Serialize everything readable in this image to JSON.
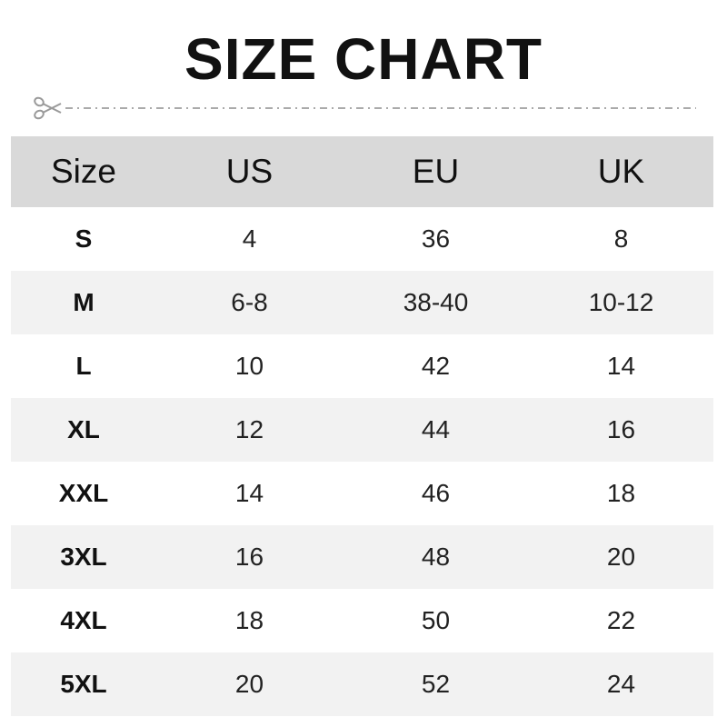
{
  "title": "SIZE CHART",
  "icons": {
    "cut": "scissors-icon"
  },
  "colors": {
    "header_bg": "#d9d9d9",
    "alt_row_bg": "#f2f2f2",
    "cut_line": "#aaaaaa"
  },
  "table": {
    "headers": [
      "Size",
      "US",
      "EU",
      "UK"
    ],
    "rows": [
      [
        "S",
        "4",
        "36",
        "8"
      ],
      [
        "M",
        "6-8",
        "38-40",
        "10-12"
      ],
      [
        "L",
        "10",
        "42",
        "14"
      ],
      [
        "XL",
        "12",
        "44",
        "16"
      ],
      [
        "XXL",
        "14",
        "46",
        "18"
      ],
      [
        "3XL",
        "16",
        "48",
        "20"
      ],
      [
        "4XL",
        "18",
        "50",
        "22"
      ],
      [
        "5XL",
        "20",
        "52",
        "24"
      ]
    ]
  }
}
